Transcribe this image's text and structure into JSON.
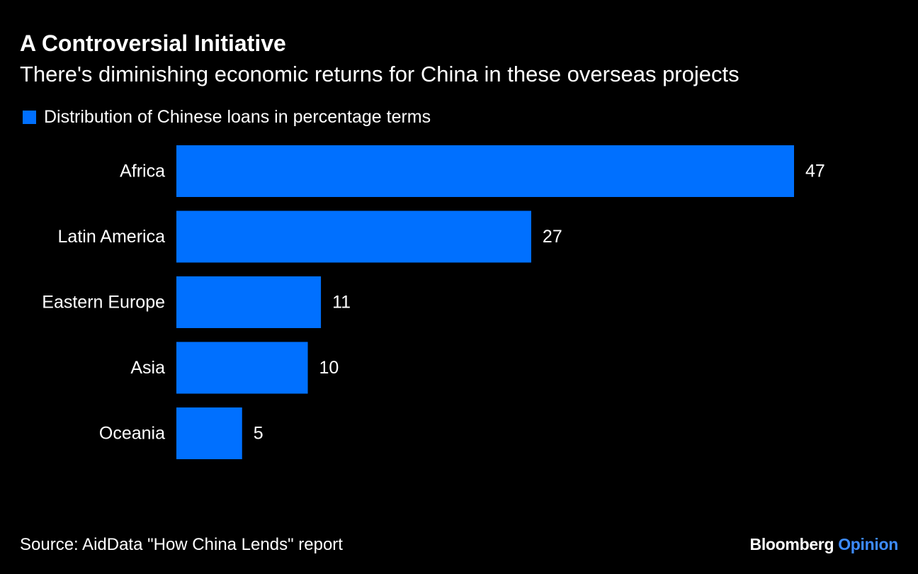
{
  "header": {
    "title": "A Controversial Initiative",
    "subtitle": "There's diminishing economic returns for China in these overseas projects"
  },
  "legend": {
    "label": "Distribution of Chinese loans in percentage terms",
    "color": "#0070ff"
  },
  "chart_data": {
    "type": "bar",
    "orientation": "horizontal",
    "categories": [
      "Africa",
      "Latin America",
      "Eastern Europe",
      "Asia",
      "Oceania"
    ],
    "series": [
      {
        "name": "Distribution of Chinese loans in percentage terms",
        "values": [
          47,
          27,
          11,
          10,
          5
        ],
        "color": "#0070ff"
      }
    ],
    "data_labels": [
      "47",
      "27",
      "11",
      "10",
      "5"
    ],
    "xlim": [
      0,
      47
    ],
    "grid": false,
    "legend_position": "top-left"
  },
  "footer": {
    "source": "Source: AidData \"How China Lends\" report",
    "logo_primary": "Bloomberg",
    "logo_accent": "Opinion",
    "logo_accent_color": "#3d8bff"
  }
}
